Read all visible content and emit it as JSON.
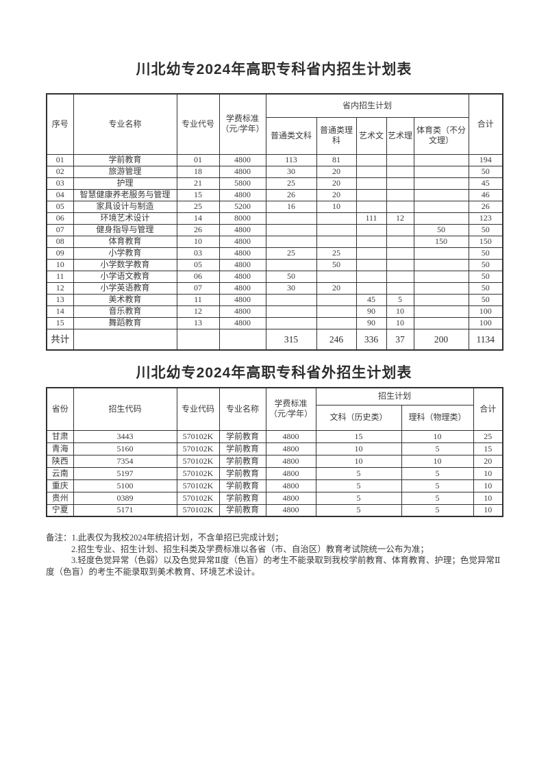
{
  "page": {
    "background": "#ffffff",
    "text_color": "#3a3a3a",
    "border_color": "#2f2f2f"
  },
  "table1": {
    "title": "川北幼专2024年高职专科省内招生计划表",
    "headers": {
      "seq": "序号",
      "major_name": "专业名称",
      "major_code": "专业代号",
      "tuition": "学费标准（元/学年）",
      "plan_group": "省内招生计划",
      "sub": [
        "普通类文科",
        "普通类理科",
        "艺术文",
        "艺术理",
        "体育类（不分文理）"
      ],
      "total": "合计"
    },
    "rows": [
      [
        "01",
        "学前教育",
        "01",
        "4800",
        "113",
        "81",
        "",
        "",
        "",
        "194"
      ],
      [
        "02",
        "旅游管理",
        "18",
        "4800",
        "30",
        "20",
        "",
        "",
        "",
        "50"
      ],
      [
        "03",
        "护理",
        "21",
        "5800",
        "25",
        "20",
        "",
        "",
        "",
        "45"
      ],
      [
        "04",
        "智慧健康养老服务与管理",
        "15",
        "4800",
        "26",
        "20",
        "",
        "",
        "",
        "46"
      ],
      [
        "05",
        "家具设计与制造",
        "25",
        "5200",
        "16",
        "10",
        "",
        "",
        "",
        "26"
      ],
      [
        "06",
        "环境艺术设计",
        "14",
        "8000",
        "",
        "",
        "111",
        "12",
        "",
        "123"
      ],
      [
        "07",
        "健身指导与管理",
        "26",
        "4800",
        "",
        "",
        "",
        "",
        "50",
        "50"
      ],
      [
        "08",
        "体育教育",
        "10",
        "4800",
        "",
        "",
        "",
        "",
        "150",
        "150"
      ],
      [
        "09",
        "小学教育",
        "03",
        "4800",
        "25",
        "25",
        "",
        "",
        "",
        "50"
      ],
      [
        "10",
        "小学数学教育",
        "05",
        "4800",
        "",
        "50",
        "",
        "",
        "",
        "50"
      ],
      [
        "11",
        "小学语文教育",
        "06",
        "4800",
        "50",
        "",
        "",
        "",
        "",
        "50"
      ],
      [
        "12",
        "小学英语教育",
        "07",
        "4800",
        "30",
        "20",
        "",
        "",
        "",
        "50"
      ],
      [
        "13",
        "美术教育",
        "11",
        "4800",
        "",
        "",
        "45",
        "5",
        "",
        "50"
      ],
      [
        "14",
        "音乐教育",
        "12",
        "4800",
        "",
        "",
        "90",
        "10",
        "",
        "100"
      ],
      [
        "15",
        "舞蹈教育",
        "13",
        "4800",
        "",
        "",
        "90",
        "10",
        "",
        "100"
      ]
    ],
    "total_row": [
      "共计",
      "",
      "",
      "",
      "315",
      "246",
      "336",
      "37",
      "200",
      "1134"
    ]
  },
  "table2": {
    "title": "川北幼专2024年高职专科省外招生计划表",
    "headers": {
      "province": "省份",
      "enroll_code": "招生代码",
      "major_code": "专业代码",
      "major_name": "专业名称",
      "tuition": "学费标准（元/学年）",
      "plan_group": "招生计划",
      "sub": [
        "文科（历史类）",
        "理科（物理类）"
      ],
      "total": "合计"
    },
    "rows": [
      [
        "甘肃",
        "3443",
        "570102K",
        "学前教育",
        "4800",
        "15",
        "10",
        "25"
      ],
      [
        "青海",
        "5160",
        "570102K",
        "学前教育",
        "4800",
        "10",
        "5",
        "15"
      ],
      [
        "陕西",
        "7354",
        "570102K",
        "学前教育",
        "4800",
        "10",
        "10",
        "20"
      ],
      [
        "云南",
        "5197",
        "570102K",
        "学前教育",
        "4800",
        "5",
        "5",
        "10"
      ],
      [
        "重庆",
        "5100",
        "570102K",
        "学前教育",
        "4800",
        "5",
        "5",
        "10"
      ],
      [
        "贵州",
        "0389",
        "570102K",
        "学前教育",
        "4800",
        "5",
        "5",
        "10"
      ],
      [
        "宁夏",
        "5171",
        "570102K",
        "学前教育",
        "4800",
        "5",
        "5",
        "10"
      ]
    ]
  },
  "notes": {
    "lines": [
      {
        "text": "备注：1.此表仅为我校2024年统招计划，不含单招已完成计划；",
        "indent": 0
      },
      {
        "text": "2.招生专业、招生计划、招生科类及学费标准以各省（市、自治区）教育考试院统一公布为准；",
        "indent": 1
      },
      {
        "text": "3.轻度色觉异常（色弱）以及色觉异常Ⅱ度（色盲）的考生不能录取到我校学前教育、体育教育、护理；色觉异常Ⅱ",
        "indent": 1
      },
      {
        "text": "度（色盲）的考生不能录取到美术教育、环境艺术设计。",
        "indent": 0
      }
    ]
  }
}
